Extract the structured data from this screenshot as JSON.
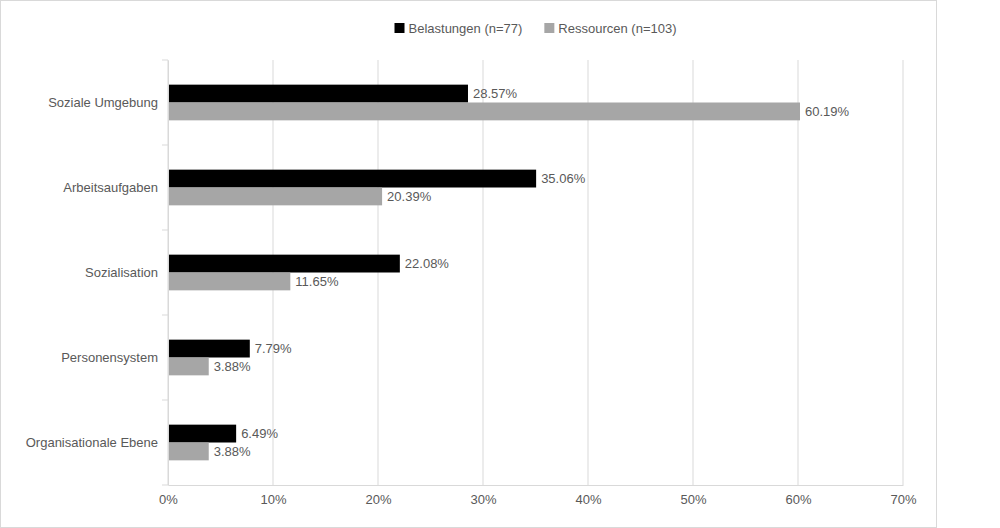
{
  "chart_data": {
    "type": "bar",
    "orientation": "horizontal",
    "categories": [
      "Soziale Umgebung",
      "Arbeitsaufgaben",
      "Sozialisation",
      "Personensystem",
      "Organisationale Ebene"
    ],
    "series": [
      {
        "name": "Belastungen (n=77)",
        "color": "#000000",
        "values": [
          28.57,
          35.06,
          22.08,
          7.79,
          6.49
        ],
        "value_labels": [
          "28.57%",
          "35.06%",
          "22.08%",
          "7.79%",
          "6.49%"
        ]
      },
      {
        "name": "Ressourcen (n=103)",
        "color": "#a6a6a6",
        "values": [
          60.19,
          20.39,
          11.65,
          3.88,
          3.88
        ],
        "value_labels": [
          "60.19%",
          "20.39%",
          "11.65%",
          "3.88%",
          "3.88%"
        ]
      }
    ],
    "xlim": [
      0,
      70
    ],
    "xticks": [
      {
        "value": 0,
        "label": "0%"
      },
      {
        "value": 10,
        "label": "10%"
      },
      {
        "value": 20,
        "label": "20%"
      },
      {
        "value": 30,
        "label": "30%"
      },
      {
        "value": 40,
        "label": "40%"
      },
      {
        "value": 50,
        "label": "50%"
      },
      {
        "value": 60,
        "label": "60%"
      },
      {
        "value": 70,
        "label": "70%"
      }
    ],
    "grid": true,
    "legend": "top",
    "data_labels": true
  }
}
